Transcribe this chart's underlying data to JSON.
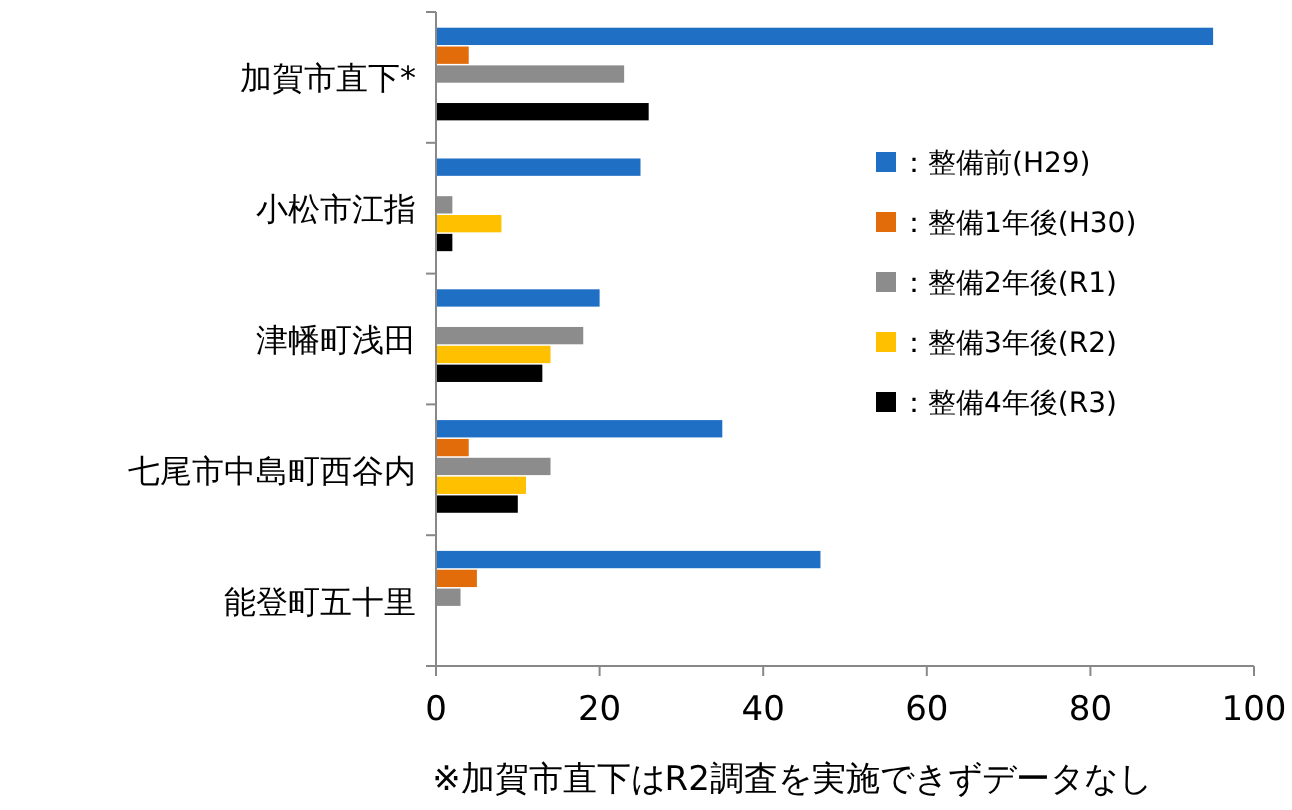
{
  "chart_data": {
    "type": "bar",
    "orientation": "horizontal",
    "categories": [
      "加賀市直下*",
      "小松市江指",
      "津幡町浅田",
      "七尾市中島町西谷内",
      "能登町五十里"
    ],
    "series": [
      {
        "name": "：整備前(H29)",
        "color": "#1f6fc5",
        "values": [
          95,
          25,
          20,
          35,
          47
        ]
      },
      {
        "name": "：整備1年後(H30)",
        "color": "#e26b0a",
        "values": [
          4,
          0,
          0,
          4,
          5
        ]
      },
      {
        "name": "：整備2年後(R1)",
        "color": "#8c8c8c",
        "values": [
          23,
          2,
          18,
          14,
          3
        ]
      },
      {
        "name": "：整備3年後(R2)",
        "color": "#ffc000",
        "values": [
          null,
          8,
          14,
          11,
          0
        ]
      },
      {
        "name": "：整備4年後(R3)",
        "color": "#000000",
        "values": [
          26,
          2,
          13,
          10,
          0
        ]
      }
    ],
    "xlim": [
      0,
      100
    ],
    "xticks": [
      0,
      20,
      40,
      60,
      80,
      100
    ],
    "grid": false,
    "legend": "right",
    "annotations": [
      "※加賀市直下はR2調査を実施できずデータなし"
    ]
  }
}
